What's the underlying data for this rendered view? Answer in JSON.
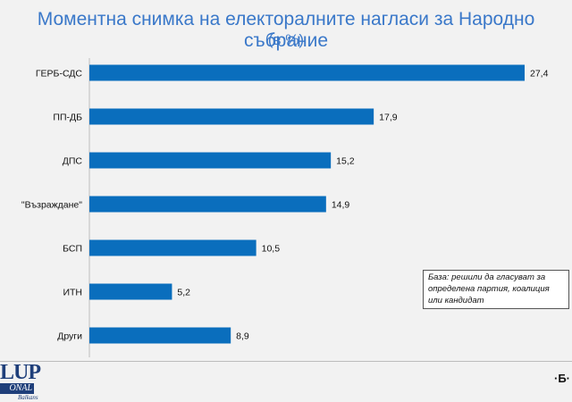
{
  "chart_data": {
    "type": "bar",
    "orientation": "horizontal",
    "title": "Моментна снимка на електоралните нагласи за Народно събрание",
    "subtitle": "(в %)",
    "categories": [
      "ГЕРБ-СДС",
      "ПП-ДБ",
      "ДПС",
      "\"Възраждане\"",
      "БСП",
      "ИТН",
      "Други"
    ],
    "values": [
      27.4,
      17.9,
      15.2,
      14.9,
      10.5,
      5.2,
      8.9
    ],
    "value_labels": [
      "27,4",
      "17,9",
      "15,2",
      "14,9",
      "10,5",
      "5,2",
      "8,9"
    ],
    "xlim": [
      0,
      27.4
    ],
    "grid": false,
    "bar_color": "#0a6ebd"
  },
  "note": {
    "lines": [
      "База: решили да гласуват за",
      "определена партия, коалиция",
      "или кандидат"
    ]
  },
  "logo": {
    "top": "LUP",
    "band": "ONAL",
    "sub": "Balkans"
  },
  "footer_mark": "·Б·"
}
